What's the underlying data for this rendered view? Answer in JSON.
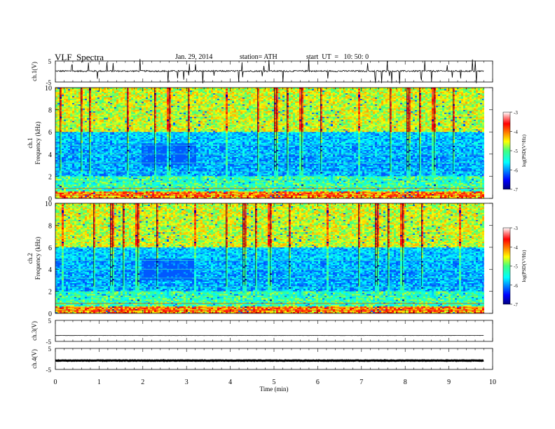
{
  "header": {
    "title": "VLF  Spectra",
    "date": "Jan. 29, 2014",
    "station": "station= ATH",
    "start": "start  UT  =   10: 50: 0"
  },
  "chart_data": [
    {
      "type": "line",
      "ylabel": "ch.1(V)",
      "ylim": [
        -5,
        5
      ],
      "yticks": [
        "5",
        "-5"
      ],
      "xlim": [
        0,
        10
      ],
      "baseline": 0.2,
      "noise": 0.35,
      "data_end_min": 9.8
    },
    {
      "type": "heatmap",
      "ylabel": "ch.1\nFrequency (kHz)",
      "ylabel_lines": [
        "ch.1",
        "Frequency  (kHz)"
      ],
      "ylim": [
        0,
        10
      ],
      "yticks": [
        "0",
        "2",
        "4",
        "6",
        "8",
        "10"
      ],
      "xlim": [
        0,
        10
      ],
      "data_end_min": 9.8,
      "colorbar": {
        "label": "log(PSD(V²/Hz)",
        "range": [
          -7,
          -3
        ],
        "ticks": [
          "-3",
          "-4",
          "-5",
          "-6",
          "-7"
        ]
      }
    },
    {
      "type": "heatmap",
      "ylabel": "ch.2\nFrequency (kHz)",
      "ylabel_lines": [
        "ch.2",
        "Frequency  (kHz)"
      ],
      "ylim": [
        0,
        10
      ],
      "yticks": [
        "0",
        "2",
        "4",
        "6",
        "8",
        "10"
      ],
      "xlim": [
        0,
        10
      ],
      "data_end_min": 9.8,
      "colorbar": {
        "label": "log(PSD(V²/Hz)",
        "range": [
          -7,
          -3
        ],
        "ticks": [
          "-3",
          "-4",
          "-5",
          "-6",
          "-7"
        ]
      }
    },
    {
      "type": "line",
      "ylabel": "ch.3(V)",
      "ylim": [
        -5,
        5
      ],
      "yticks": [
        "5",
        "-5"
      ],
      "xlim": [
        0,
        10
      ],
      "baseline": -2.2,
      "noise": 0.05,
      "data_end_min": 9.8
    },
    {
      "type": "line",
      "ylabel": "ch.4(V)",
      "ylim": [
        -5,
        5
      ],
      "yticks": [
        "5",
        "-5"
      ],
      "xlim": [
        0,
        10
      ],
      "baseline": -0.8,
      "noise": 0.12,
      "data_end_min": 9.8,
      "xlabel": "Time  (min)",
      "xticks": [
        "0",
        "1",
        "2",
        "3",
        "4",
        "5",
        "6",
        "7",
        "8",
        "9",
        "10"
      ]
    }
  ]
}
